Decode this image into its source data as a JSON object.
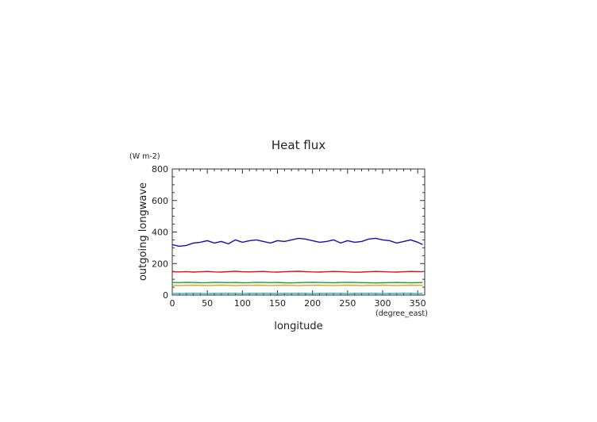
{
  "chart_data": {
    "type": "line",
    "title": "Heat flux",
    "xlabel": "longitude",
    "xunit": "(degree_east)",
    "ylabel": "outgoing longwave",
    "yunit": "(W m-2)",
    "xlim": [
      0,
      360
    ],
    "ylim": [
      0,
      800
    ],
    "xticks": [
      0,
      50,
      100,
      150,
      200,
      250,
      300,
      350
    ],
    "yticks": [
      0,
      200,
      400,
      600,
      800
    ],
    "grid": false,
    "legend": "none",
    "x": [
      0,
      10,
      20,
      30,
      40,
      50,
      60,
      70,
      80,
      90,
      100,
      110,
      120,
      130,
      140,
      150,
      160,
      170,
      180,
      190,
      200,
      210,
      220,
      230,
      240,
      250,
      260,
      270,
      280,
      290,
      300,
      310,
      320,
      330,
      340,
      350,
      357
    ],
    "series": [
      {
        "color": "#1a0fa8",
        "values": [
          320,
          310,
          315,
          330,
          335,
          345,
          330,
          340,
          325,
          350,
          335,
          345,
          350,
          340,
          330,
          345,
          340,
          350,
          360,
          355,
          345,
          335,
          340,
          350,
          330,
          345,
          335,
          340,
          355,
          360,
          350,
          345,
          330,
          340,
          350,
          335,
          320
        ]
      },
      {
        "color": "#e01010",
        "values": [
          148,
          147,
          149,
          146,
          148,
          150,
          147,
          146,
          149,
          151,
          148,
          147,
          149,
          150,
          147,
          146,
          148,
          150,
          151,
          149,
          147,
          146,
          148,
          150,
          149,
          147,
          145,
          146,
          148,
          150,
          149,
          147,
          146,
          148,
          150,
          149,
          148
        ]
      },
      {
        "color": "#1a9e3a",
        "values": [
          80,
          79,
          81,
          80,
          78,
          79,
          81,
          80,
          79,
          80,
          78,
          79,
          81,
          80,
          79,
          80,
          78,
          77,
          79,
          80,
          81,
          80,
          79,
          78,
          80,
          81,
          80,
          79,
          78,
          77,
          78,
          79,
          80,
          79,
          78,
          79,
          80
        ]
      },
      {
        "color": "#e0a020",
        "values": [
          62,
          61,
          62,
          63,
          62,
          61,
          62,
          63,
          62,
          61,
          62,
          62,
          63,
          62,
          61,
          62,
          63,
          62,
          61,
          62,
          62,
          63,
          62,
          61,
          62,
          63,
          62,
          61,
          62,
          62,
          63,
          62,
          61,
          62,
          63,
          62,
          62
        ]
      },
      {
        "color": "#20b8c8",
        "values": [
          10,
          9,
          10,
          11,
          10,
          9,
          10,
          10,
          11,
          10,
          9,
          10,
          10,
          11,
          10,
          9,
          10,
          10,
          11,
          10,
          9,
          10,
          10,
          11,
          10,
          9,
          10,
          10,
          11,
          10,
          9,
          10,
          10,
          11,
          10,
          9,
          10
        ]
      }
    ]
  }
}
